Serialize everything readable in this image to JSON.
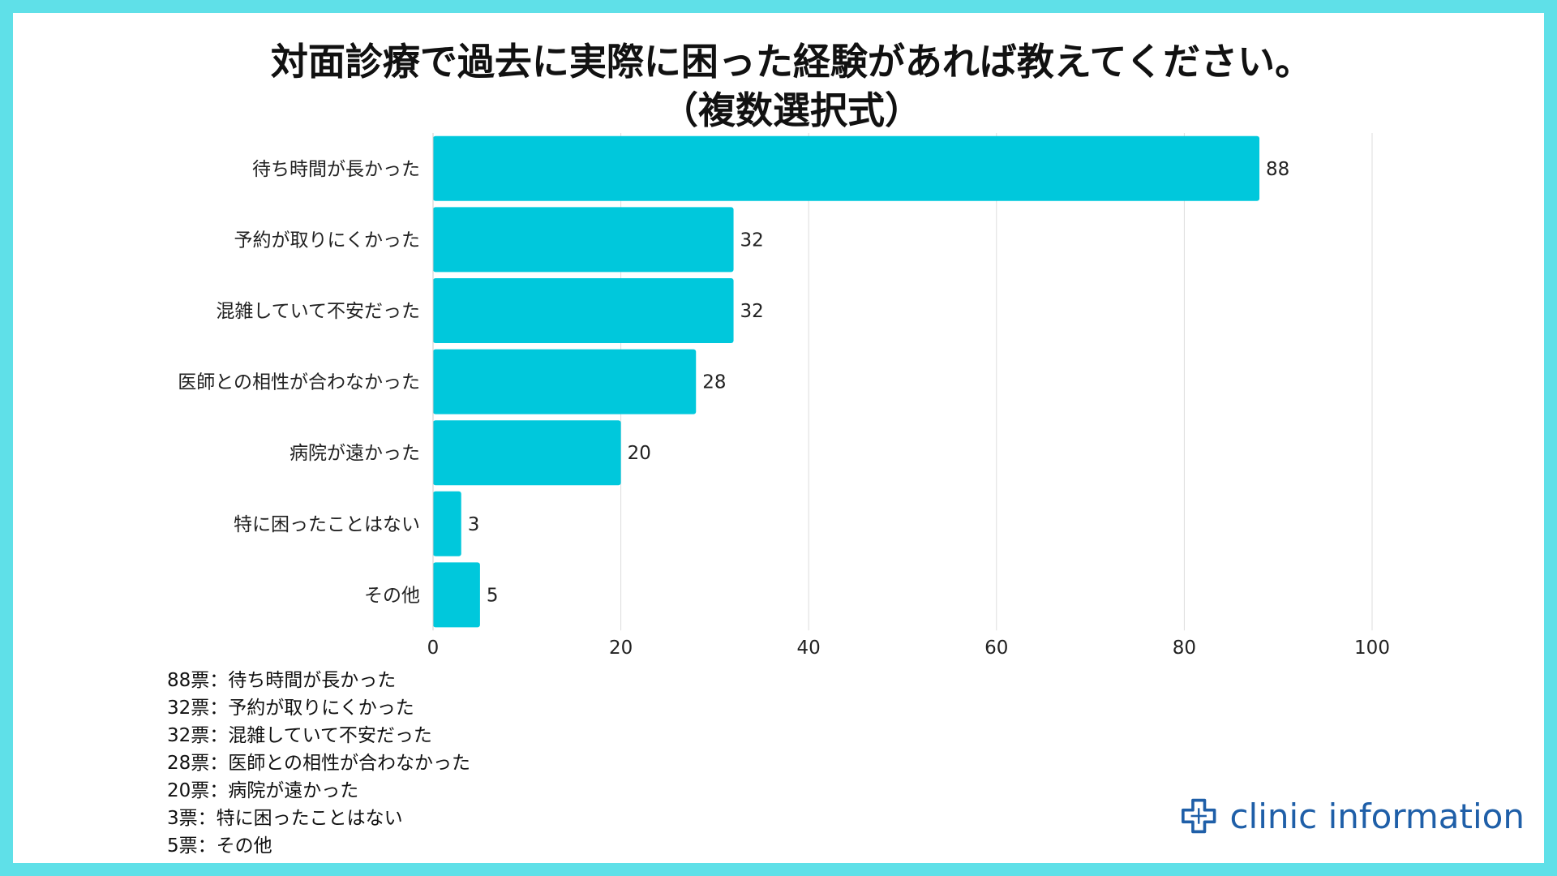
{
  "chart_data": {
    "type": "bar",
    "orientation": "horizontal",
    "title_lines": [
      "対面診療で過去に実際に困った経験があれば教えてください。",
      "（複数選択式）"
    ],
    "categories": [
      "待ち時間が長かった",
      "予約が取りにくかった",
      "混雑していて不安だった",
      "医師との相性が合わなかった",
      "病院が遠かった",
      "特に困ったことはない",
      "その他"
    ],
    "values": [
      88,
      32,
      32,
      28,
      20,
      3,
      5
    ],
    "xlim": [
      0,
      100
    ],
    "x_ticks": [
      "0",
      "20",
      "40",
      "60",
      "80",
      "100"
    ],
    "x_tick_values": [
      0,
      20,
      40,
      60,
      80,
      100
    ],
    "grid": true,
    "bar_color": "#00c8dc",
    "gridline_color": "#dddddd"
  },
  "legend_lines": [
    "88票：待ち時間が長かった",
    "32票：予約が取りにくかった",
    "32票：混雑していて不安だった",
    "28票：医師との相性が合わなかった",
    "20票：病院が遠かった",
    "3票：特に困ったことはない",
    "5票：その他"
  ],
  "logo": {
    "text": "clinic information",
    "icon": "medical-cross-icon",
    "color": "#1f5fa8"
  },
  "colors": {
    "frame": "#5fe0e8",
    "text": "#111111"
  }
}
